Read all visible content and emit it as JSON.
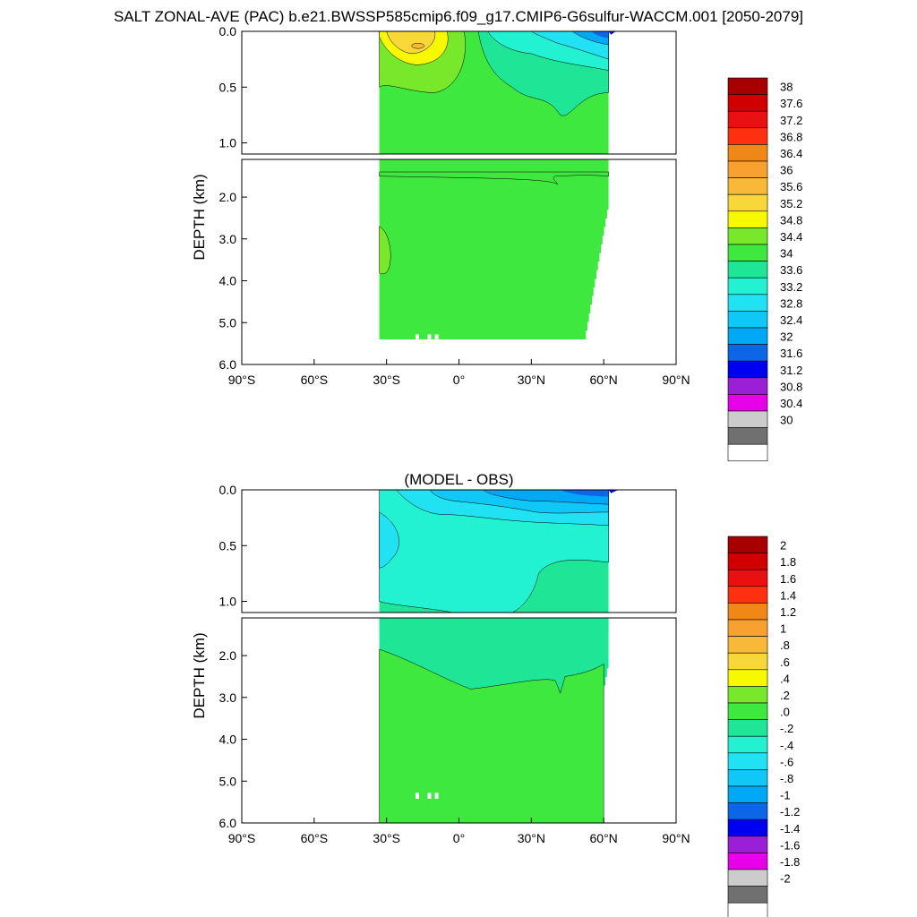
{
  "figure_title": "SALT ZONAL-AVE (PAC) b.e21.BWSSP585cmip6.f09_g17.CMIP6-G6sulfur-WACCM.001 [2050-2079]",
  "chart_data": [
    {
      "type": "heatmap",
      "title": "",
      "ylabel": "DEPTH (km)",
      "xlim": [
        -90,
        90
      ],
      "ylim": [
        0,
        6
      ],
      "xticks": [
        -90,
        -60,
        -30,
        0,
        30,
        60,
        90
      ],
      "xtick_labels": [
        "90°S",
        "60°S",
        "30°S",
        "0°",
        "30°N",
        "60°N",
        "90°N"
      ],
      "yticks_upper": [
        0,
        0.5,
        1.0
      ],
      "yticks_upper_labels": [
        "0.0",
        "0.5",
        "1.0"
      ],
      "yticks_lower": [
        2,
        3,
        4,
        5,
        6
      ],
      "yticks_lower_labels": [
        "2.0",
        "3.0",
        "4.0",
        "5.0",
        "6.0"
      ],
      "upper_depth_range": [
        0,
        1.1
      ],
      "lower_depth_range": [
        1.1,
        6
      ],
      "colorbar": {
        "labels": [
          "30",
          "30.4",
          "30.8",
          "31.2",
          "31.6",
          "32",
          "32.4",
          "32.8",
          "33.2",
          "33.6",
          "34",
          "34.4",
          "34.8",
          "35.2",
          "35.6",
          "36",
          "36.4",
          "36.8",
          "37.2",
          "37.6",
          "38"
        ],
        "colors": [
          "#ffffff",
          "#707070",
          "#cccccc",
          "#e800e8",
          "#9b1fd6",
          "#0000f0",
          "#0c66e6",
          "#00a8f5",
          "#10c8f8",
          "#20e2f2",
          "#22f2d2",
          "#1fe696",
          "#3ee83e",
          "#78e82a",
          "#f8f800",
          "#f8d838",
          "#f8b838",
          "#f8a030",
          "#f08818",
          "#ff3010",
          "#e81010",
          "#d00000",
          "#a80000"
        ]
      },
      "domain": {
        "lat_south": -33,
        "lat_north_surface": 62,
        "lat_north_bottom": 52,
        "max_depth": 5.4
      }
    },
    {
      "type": "heatmap",
      "title": "(MODEL - OBS)",
      "ylabel": "DEPTH (km)",
      "xlim": [
        -90,
        90
      ],
      "ylim": [
        0,
        6
      ],
      "xticks": [
        -90,
        -60,
        -30,
        0,
        30,
        60,
        90
      ],
      "xtick_labels": [
        "90°S",
        "60°S",
        "30°S",
        "0°",
        "30°N",
        "60°N",
        "90°N"
      ],
      "yticks_upper": [
        0,
        0.5,
        1.0
      ],
      "yticks_upper_labels": [
        "0.0",
        "0.5",
        "1.0"
      ],
      "yticks_lower": [
        2,
        3,
        4,
        5,
        6
      ],
      "yticks_lower_labels": [
        "2.0",
        "3.0",
        "4.0",
        "5.0",
        "6.0"
      ],
      "upper_depth_range": [
        0,
        1.1
      ],
      "lower_depth_range": [
        1.1,
        6
      ],
      "colorbar": {
        "labels": [
          "-2",
          "-1.8",
          "-1.6",
          "-1.4",
          "-1.2",
          "-1",
          "-.8",
          "-.6",
          "-.4",
          "-.2",
          ".0",
          ".2",
          ".4",
          ".6",
          ".8",
          "1",
          "1.2",
          "1.4",
          "1.6",
          "1.8",
          "2"
        ],
        "colors": [
          "#ffffff",
          "#707070",
          "#cccccc",
          "#e800e8",
          "#9b1fd6",
          "#0000f0",
          "#0c66e6",
          "#00a8f5",
          "#10c8f8",
          "#20e2f2",
          "#22f2d2",
          "#1fe696",
          "#3ee83e",
          "#78e82a",
          "#f8f800",
          "#f8d838",
          "#f8b838",
          "#f8a030",
          "#f08818",
          "#ff3010",
          "#e81010",
          "#d00000",
          "#a80000"
        ]
      },
      "domain": {
        "lat_south": -33,
        "lat_north_surface": 62,
        "lat_north_bottom": 52,
        "max_depth": 5.4
      }
    }
  ]
}
